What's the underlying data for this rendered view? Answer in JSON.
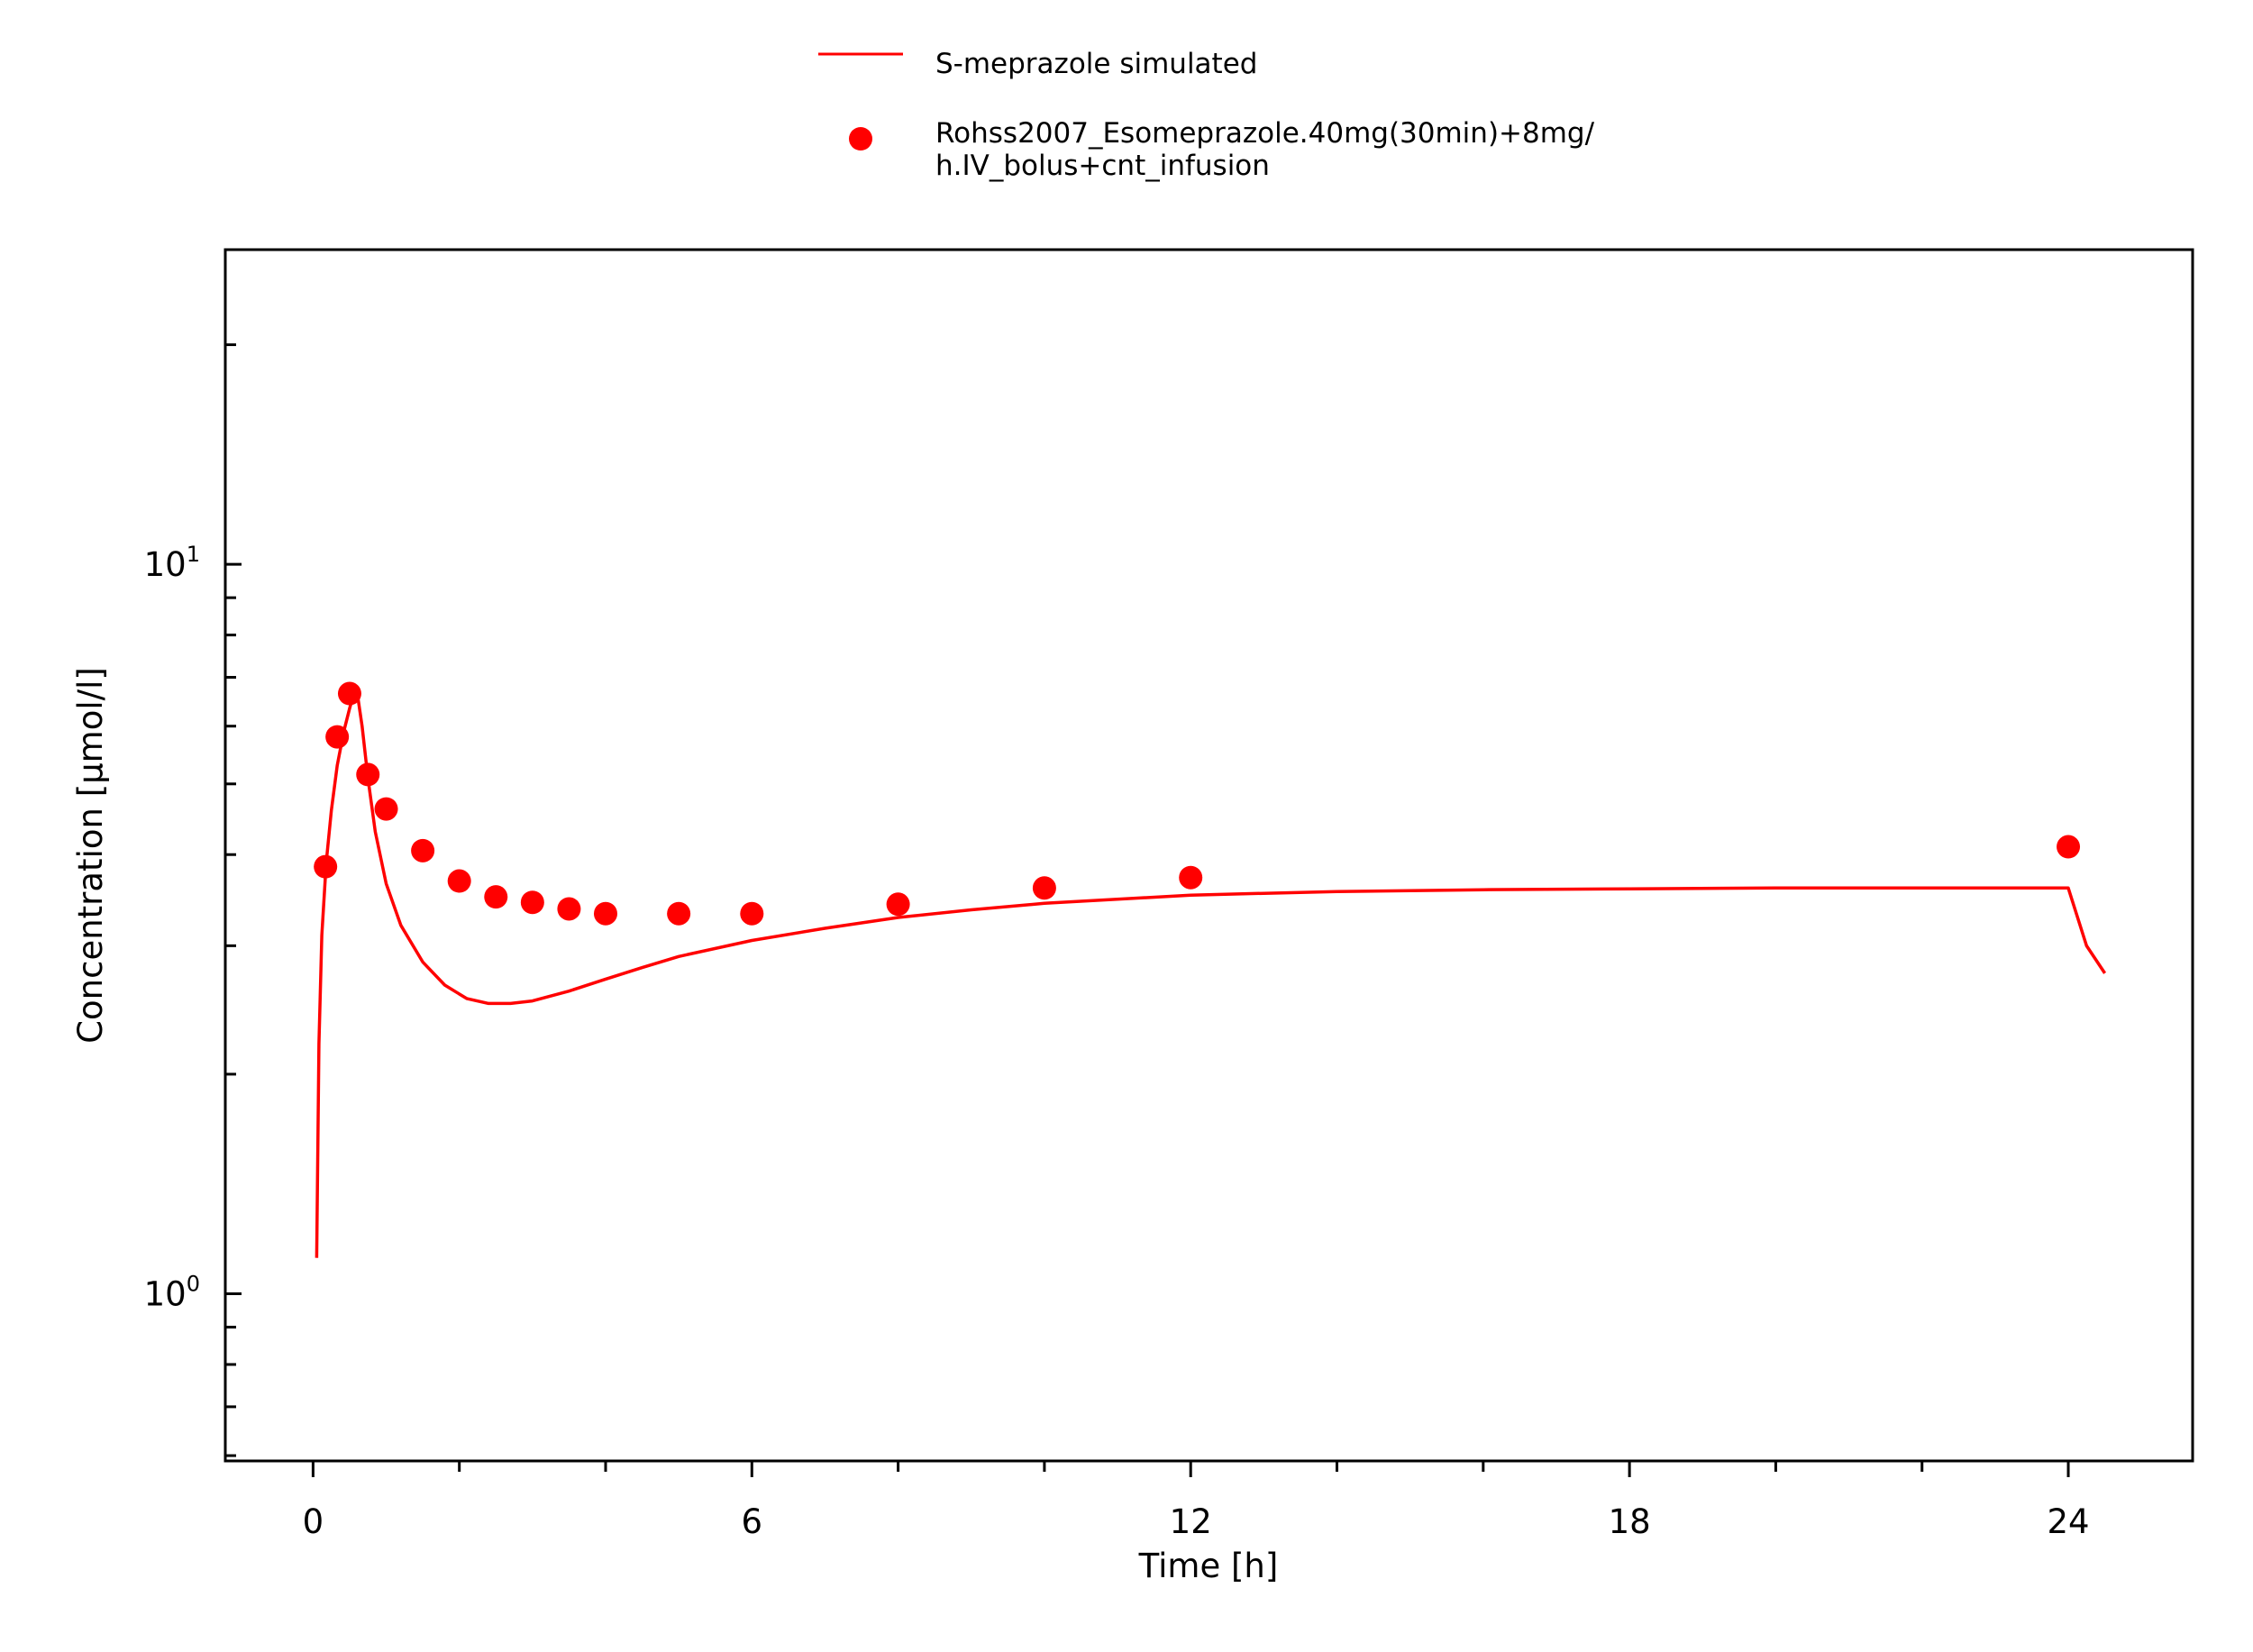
{
  "chart_data": {
    "type": "line",
    "xlabel": "Time [h]",
    "ylabel": "Concentration [µmol/l]",
    "x_scale": "linear",
    "y_scale": "log",
    "xlim": [
      -1.2,
      25.7
    ],
    "ylim": [
      0.59,
      27
    ],
    "x_ticks": [
      0,
      6,
      12,
      18,
      24
    ],
    "x_tick_labels": [
      "0",
      "6",
      "12",
      "18",
      "24"
    ],
    "y_ticks": [
      {
        "value": 1,
        "base": "10",
        "exp": "0"
      },
      {
        "value": 10,
        "base": "10",
        "exp": "1"
      }
    ],
    "grid": false,
    "legend_position": "top-center",
    "series": [
      {
        "name": "S-meprazole simulated",
        "kind": "line",
        "color": "#ff0000",
        "x": [
          0.05,
          0.08,
          0.12,
          0.18,
          0.25,
          0.33,
          0.42,
          0.5,
          0.55,
          0.6,
          0.67,
          0.75,
          0.85,
          1.0,
          1.2,
          1.5,
          1.8,
          2.1,
          2.4,
          2.7,
          3.0,
          3.5,
          4.0,
          4.5,
          5.0,
          6.0,
          7.0,
          8.0,
          9.0,
          10.0,
          12.0,
          14.0,
          16.0,
          18.0,
          20.0,
          22.0,
          24.0,
          24.25,
          24.5
        ],
        "values": [
          1.12,
          2.2,
          3.1,
          3.9,
          4.6,
          5.3,
          5.9,
          6.35,
          6.6,
          6.7,
          6.0,
          5.1,
          4.3,
          3.65,
          3.2,
          2.85,
          2.65,
          2.54,
          2.5,
          2.5,
          2.52,
          2.6,
          2.7,
          2.8,
          2.9,
          3.05,
          3.17,
          3.28,
          3.36,
          3.43,
          3.52,
          3.56,
          3.58,
          3.59,
          3.6,
          3.6,
          3.6,
          3.0,
          2.75
        ]
      },
      {
        "name": "Rohss2007_Esomeprazole.40mg(30min)+8mg/h.IV_bolus+cnt_infusion",
        "name_lines": [
          "Rohss2007_Esomeprazole.40mg(30min)+8mg/",
          "h.IV_bolus+cnt_infusion"
        ],
        "kind": "scatter",
        "color": "#ff0000",
        "x": [
          0.17,
          0.33,
          0.5,
          0.75,
          1.0,
          1.5,
          2.0,
          2.5,
          3.0,
          3.5,
          4.0,
          5.0,
          6.0,
          8.0,
          10.0,
          12.0,
          24.0
        ],
        "values": [
          3.85,
          5.8,
          6.65,
          5.15,
          4.62,
          4.05,
          3.68,
          3.5,
          3.44,
          3.37,
          3.32,
          3.32,
          3.32,
          3.42,
          3.6,
          3.72,
          4.1
        ]
      }
    ]
  }
}
